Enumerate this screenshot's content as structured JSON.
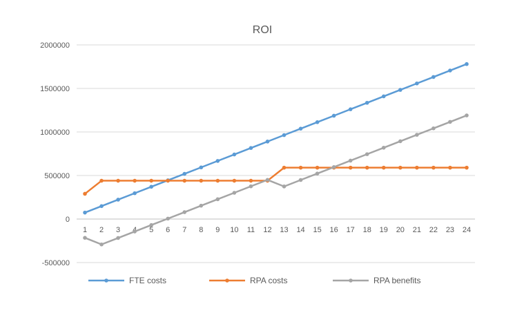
{
  "chart_data": {
    "type": "line",
    "title": "ROI",
    "xlabel": "",
    "ylabel": "",
    "categories": [
      "1",
      "2",
      "3",
      "4",
      "5",
      "6",
      "7",
      "8",
      "9",
      "10",
      "11",
      "12",
      "13",
      "14",
      "15",
      "16",
      "17",
      "18",
      "19",
      "20",
      "21",
      "22",
      "23",
      "24"
    ],
    "ylim": [
      -500000,
      2000000
    ],
    "yticks": [
      "-500000",
      "0",
      "500000",
      "1000000",
      "1500000",
      "2000000"
    ],
    "ytick_values": [
      -500000,
      0,
      500000,
      1000000,
      1500000,
      2000000
    ],
    "grid": true,
    "legend_position": "bottom",
    "series": [
      {
        "name": "FTE costs",
        "color": "#5B9BD5",
        "values": [
          74167,
          148333,
          222500,
          296667,
          370833,
          445000,
          519167,
          593333,
          667500,
          741667,
          815833,
          890000,
          964167,
          1038333,
          1112500,
          1186667,
          1260833,
          1335000,
          1409167,
          1483333,
          1557500,
          1631667,
          1705833,
          1780000
        ]
      },
      {
        "name": "RPA costs",
        "color": "#ED7D31",
        "values": [
          290000,
          440000,
          440000,
          440000,
          440000,
          440000,
          440000,
          440000,
          440000,
          440000,
          440000,
          440000,
          590000,
          590000,
          590000,
          590000,
          590000,
          590000,
          590000,
          590000,
          590000,
          590000,
          590000,
          590000
        ]
      },
      {
        "name": "RPA benefits",
        "color": "#A5A5A5",
        "values": [
          -215833,
          -291667,
          -217500,
          -143333,
          -69167,
          5000,
          79167,
          153333,
          227500,
          301667,
          375833,
          450000,
          374167,
          448333,
          522500,
          596667,
          670833,
          745000,
          819167,
          893333,
          967500,
          1041667,
          1115833,
          1190000
        ]
      }
    ]
  }
}
